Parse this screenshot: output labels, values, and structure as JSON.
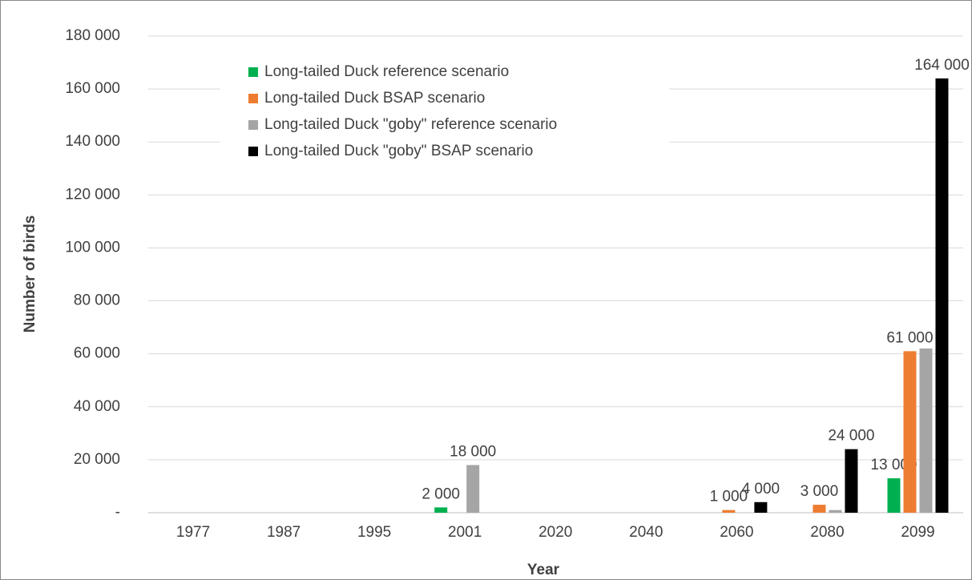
{
  "chart_data": {
    "type": "bar",
    "x_label": "Year",
    "y_label": "Number of birds",
    "categories": [
      "1977",
      "1987",
      "1995",
      "2001",
      "2020",
      "2040",
      "2060",
      "2080",
      "2099"
    ],
    "series": [
      {
        "name": "Long-tailed Duck reference scenario",
        "color": "#00b050",
        "values": [
          null,
          null,
          null,
          2000,
          null,
          null,
          null,
          null,
          13000
        ],
        "value_labels": [
          null,
          null,
          null,
          "2 000",
          null,
          null,
          null,
          null,
          "13 000"
        ]
      },
      {
        "name": "Long-tailed Duck BSAP scenario",
        "color": "#ed7d31",
        "values": [
          null,
          null,
          null,
          null,
          null,
          null,
          1000,
          3000,
          61000
        ],
        "value_labels": [
          null,
          null,
          null,
          null,
          null,
          null,
          "1 000",
          "3 000",
          "61 000"
        ]
      },
      {
        "name": "Long-tailed Duck \"goby\" reference scenario",
        "color": "#a5a5a5",
        "values": [
          null,
          null,
          null,
          18000,
          null,
          null,
          null,
          1000,
          62000
        ],
        "value_labels": [
          null,
          null,
          null,
          "18 000",
          null,
          null,
          null,
          null,
          null
        ]
      },
      {
        "name": "Long-tailed Duck \"goby\" BSAP scenario",
        "color": "#000000",
        "values": [
          null,
          null,
          null,
          null,
          null,
          null,
          4000,
          24000,
          164000
        ],
        "value_labels": [
          null,
          null,
          null,
          null,
          null,
          null,
          "4 000",
          "24 000",
          "164 000"
        ]
      }
    ],
    "ylim": [
      0,
      180000
    ],
    "yticks": [
      {
        "value": 0,
        "label": "-"
      },
      {
        "value": 20000,
        "label": "20 000"
      },
      {
        "value": 40000,
        "label": "40 000"
      },
      {
        "value": 60000,
        "label": "60 000"
      },
      {
        "value": 80000,
        "label": "80 000"
      },
      {
        "value": 100000,
        "label": "100 000"
      },
      {
        "value": 120000,
        "label": "120 000"
      },
      {
        "value": 140000,
        "label": "140 000"
      },
      {
        "value": 160000,
        "label": "160 000"
      },
      {
        "value": 180000,
        "label": "180 000"
      }
    ],
    "grid": true,
    "legend": "upper-left"
  }
}
